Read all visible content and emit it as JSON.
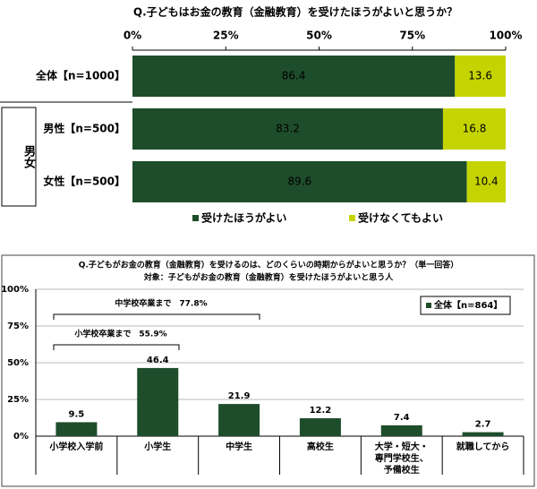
{
  "chart_data": [
    {
      "type": "bar",
      "orientation": "horizontal",
      "stacked": true,
      "title": "Q.子どもはお金の教育（金融教育）を受けたほうがよいと思うか？",
      "categories": [
        "全体【n=1000】",
        "男性【n=500】",
        "女性【n=500】"
      ],
      "group_label": "男女",
      "series": [
        {
          "name": "受けたほうがよい",
          "color": "#1e4d2b",
          "values": [
            86.4,
            83.2,
            89.6
          ]
        },
        {
          "name": "受けなくてもよい",
          "color": "#c5d400",
          "values": [
            13.6,
            16.8,
            10.4
          ]
        }
      ],
      "xlim": [
        0,
        100
      ],
      "xticks": [
        {
          "value": 0,
          "label": "0%"
        },
        {
          "value": 25,
          "label": "25%"
        },
        {
          "value": 50,
          "label": "50%"
        },
        {
          "value": 75,
          "label": "75%"
        },
        {
          "value": 100,
          "label": "100%"
        }
      ],
      "grid": false
    },
    {
      "type": "bar",
      "orientation": "vertical",
      "title": "Q.子どもがお金の教育（金融教育）を受けるのは、どのくらいの時期からがよいと思うか？（単一回答）",
      "subtitle": "対象：子どもがお金の教育（金融教育）を受けたほうがよいと思う人",
      "categories": [
        "小学校入学前",
        "小学生",
        "中学生",
        "高校生",
        "大学・短大・\n専門学校生、\n予備校生",
        "就職してから"
      ],
      "series": [
        {
          "name": "全体【n=864】",
          "color": "#1e4d2b",
          "values": [
            9.5,
            46.4,
            21.9,
            12.2,
            7.4,
            2.7
          ]
        }
      ],
      "ylim": [
        0,
        100
      ],
      "yticks": [
        {
          "value": 0,
          "label": "0%"
        },
        {
          "value": 25,
          "label": "25%"
        },
        {
          "value": 50,
          "label": "50%"
        },
        {
          "value": 75,
          "label": "75%"
        },
        {
          "value": 100,
          "label": "100%"
        }
      ],
      "annotations": [
        "中学校卒業まで　77.8%",
        "小学校卒業まで　55.9%"
      ],
      "grid": true
    }
  ]
}
